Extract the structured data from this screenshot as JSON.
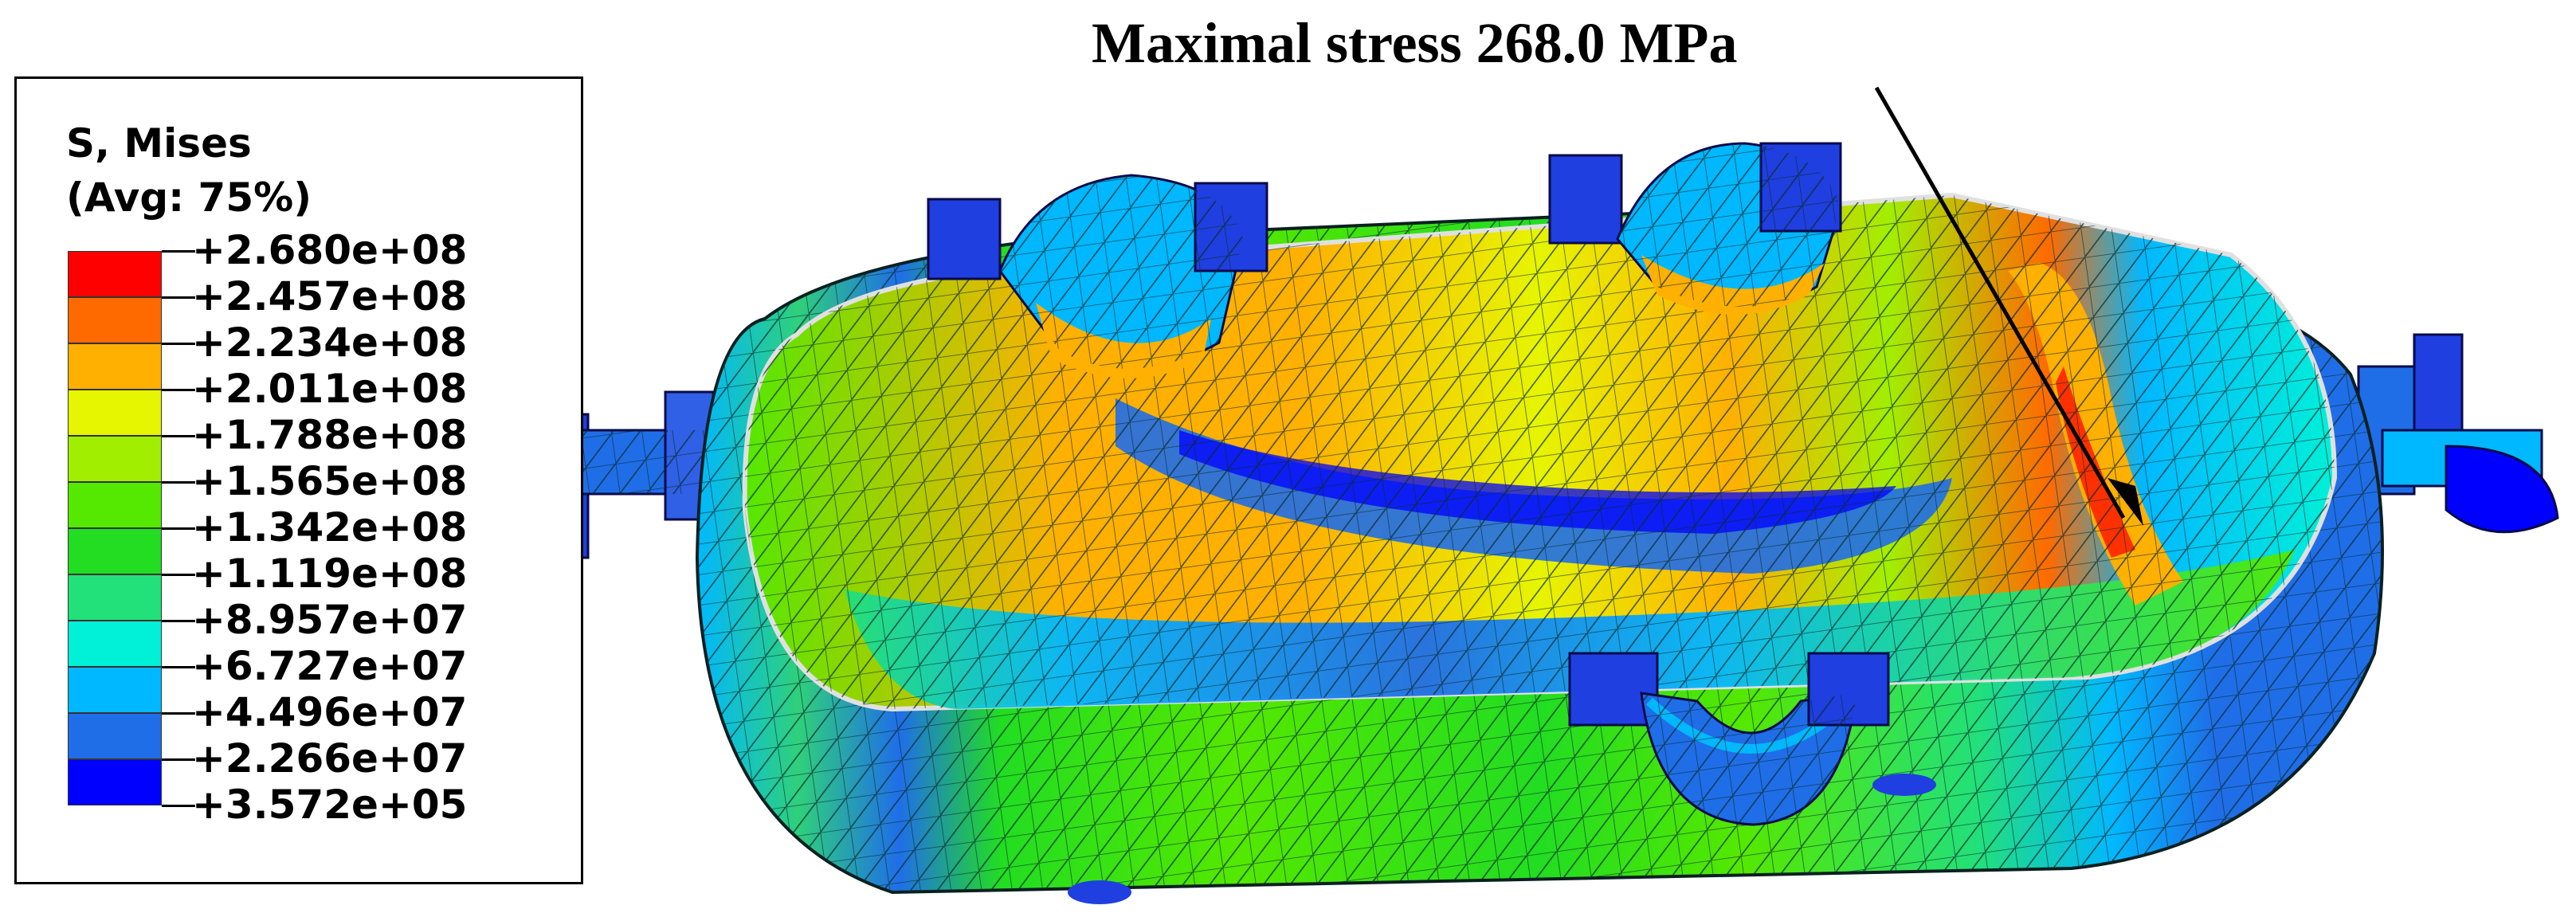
{
  "legend": {
    "title_line1": "S, Mises",
    "title_line2": "(Avg: 75%)",
    "values": [
      "+2.680e+08",
      "+2.457e+08",
      "+2.234e+08",
      "+2.011e+08",
      "+1.788e+08",
      "+1.565e+08",
      "+1.342e+08",
      "+1.119e+08",
      "+8.957e+07",
      "+6.727e+07",
      "+4.496e+07",
      "+2.266e+07",
      "+3.572e+05"
    ],
    "colors": [
      "#ff0000",
      "#ff6a00",
      "#ffb000",
      "#e6f500",
      "#a2ee00",
      "#55e800",
      "#22dd22",
      "#22e07a",
      "#00f0d8",
      "#00b8ff",
      "#1f6ee8",
      "#0000ff"
    ]
  },
  "annotation": {
    "label": "Maximal stress 268.0 MPa"
  }
}
